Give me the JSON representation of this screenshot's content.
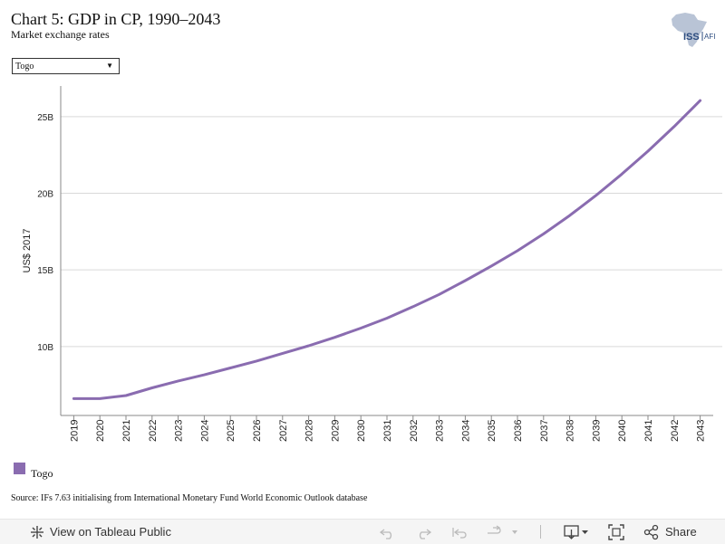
{
  "header": {
    "title": "Chart 5: GDP in CP, 1990–2043",
    "subtitle": "Market exchange rates",
    "logo_text": "ISS",
    "logo_suffix": "AFI"
  },
  "filter": {
    "selected": "Togo"
  },
  "colors": {
    "series": "#8a6cb0",
    "grid": "#d9d9d9",
    "axis": "#888888"
  },
  "chart_data": {
    "type": "line",
    "title": "Chart 5: GDP in CP, 1990–2043",
    "subtitle": "Market exchange rates",
    "xlabel": "",
    "ylabel": "US$ 2017",
    "x": [
      2019,
      2020,
      2021,
      2022,
      2023,
      2024,
      2025,
      2026,
      2027,
      2028,
      2029,
      2030,
      2031,
      2032,
      2033,
      2034,
      2035,
      2036,
      2037,
      2038,
      2039,
      2040,
      2041,
      2042,
      2043
    ],
    "y_ticks": [
      10,
      15,
      20,
      25
    ],
    "y_tick_labels": [
      "10B",
      "15B",
      "20B",
      "25B"
    ],
    "ylim": [
      5.5,
      27
    ],
    "grid": true,
    "legend_position": "bottom-left",
    "series": [
      {
        "name": "Togo",
        "unit": "billion US$",
        "values": [
          6.6,
          6.6,
          6.8,
          7.3,
          7.75,
          8.15,
          8.6,
          9.05,
          9.55,
          10.05,
          10.6,
          11.2,
          11.85,
          12.6,
          13.4,
          14.3,
          15.25,
          16.25,
          17.35,
          18.55,
          19.85,
          21.25,
          22.75,
          24.35,
          26.05
        ]
      }
    ]
  },
  "legend": {
    "items": [
      {
        "label": "Togo"
      }
    ]
  },
  "source": "Source: IFs 7.63 initialising from International Monetary Fund World Economic Outlook database",
  "toolbar": {
    "view_label": "View on Tableau Public",
    "share_label": "Share"
  }
}
